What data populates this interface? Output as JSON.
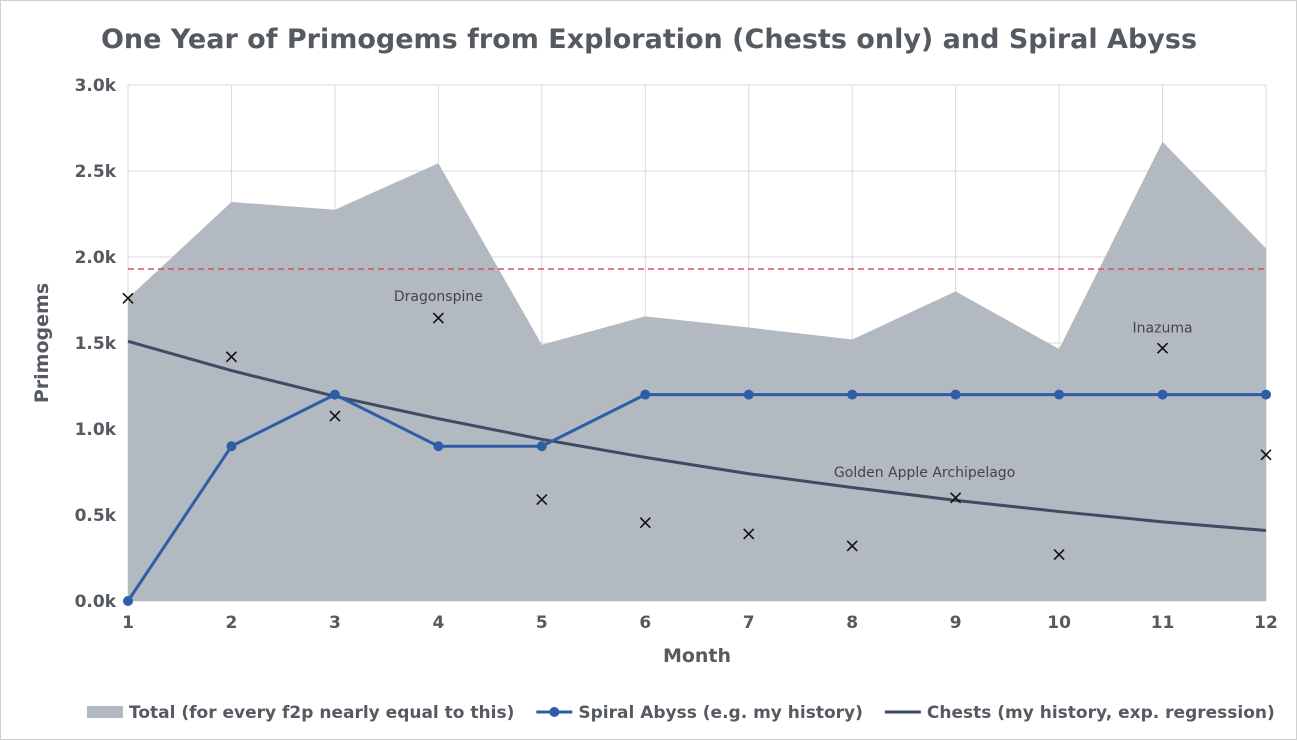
{
  "chart_data": {
    "type": "line",
    "title": "One Year of Primogems from Exploration (Chests only) and Spiral Abyss",
    "xlabel": "Month",
    "ylabel": "Primogems",
    "x": [
      1,
      2,
      3,
      4,
      5,
      6,
      7,
      8,
      9,
      10,
      11,
      12
    ],
    "xlim": [
      1,
      12
    ],
    "ylim": [
      0,
      3000
    ],
    "yticks": [
      0,
      500,
      1000,
      1500,
      2000,
      2500,
      3000
    ],
    "ytick_labels": [
      "0.0k",
      "0.5k",
      "1.0k",
      "1.5k",
      "2.0k",
      "2.5k",
      "3.0k"
    ],
    "grid": true,
    "legend_position": "bottom",
    "reference_line": {
      "value": 1930,
      "color": "#d9535f",
      "style": "dashed"
    },
    "series": [
      {
        "name": "Total (for every f2p nearly equal to this)",
        "kind": "area",
        "color": "#b3b9c0",
        "values": [
          1760,
          2320,
          2275,
          2545,
          1490,
          1655,
          1590,
          1520,
          1800,
          1465,
          2670,
          2050
        ]
      },
      {
        "name": "Spiral Abyss (e.g. my history)",
        "kind": "line-markers",
        "color": "#2f5ea8",
        "values": [
          0,
          900,
          1200,
          900,
          900,
          1200,
          1200,
          1200,
          1200,
          1200,
          1200,
          1200
        ]
      },
      {
        "name": "Chests (my history, exp. regression)",
        "kind": "line",
        "color": "#3d4b63",
        "values": [
          1510,
          1340,
          1190,
          1060,
          940,
          835,
          740,
          660,
          585,
          520,
          460,
          410
        ]
      },
      {
        "name": "",
        "kind": "scatter",
        "marker": "x",
        "color": "#111111",
        "values": [
          1760,
          1420,
          1075,
          1645,
          590,
          455,
          390,
          320,
          600,
          270,
          1470,
          850
        ]
      }
    ],
    "annotations": [
      {
        "text": "Dragonspine",
        "x": 4,
        "y": 1745
      },
      {
        "text": "Inazuma",
        "x": 11,
        "y": 1560
      },
      {
        "text": "Golden Apple Archipelago",
        "x": 8.7,
        "y": 720
      }
    ]
  }
}
